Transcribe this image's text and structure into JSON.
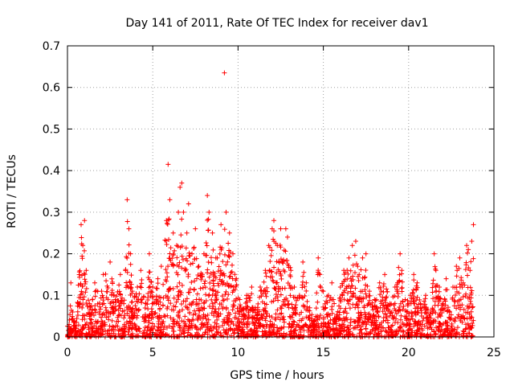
{
  "chart_data": {
    "type": "scatter",
    "title": "Day 141 of 2011, Rate Of TEC Index for receiver dav1",
    "xlabel": "GPS time / hours",
    "ylabel": "ROTI / TECUs",
    "xlim": [
      0,
      25
    ],
    "ylim": [
      0,
      0.7
    ],
    "x_ticks": [
      0,
      5,
      10,
      15,
      20,
      25
    ],
    "x_tick_labels": [
      "0",
      "5",
      "10",
      "15",
      "20",
      "25"
    ],
    "y_ticks": [
      0,
      0.1,
      0.2,
      0.3,
      0.4,
      0.5,
      0.6,
      0.7
    ],
    "y_tick_labels": [
      "0",
      "0.1",
      "0.2",
      "0.3",
      "0.4",
      "0.5",
      "0.6",
      "0.7"
    ],
    "grid": true,
    "marker": "+",
    "color": "#ff0000",
    "series": [
      {
        "name": "ROTI",
        "points": [
          [
            0.1,
            0.03
          ],
          [
            0.2,
            0.13
          ],
          [
            0.3,
            0.06
          ],
          [
            0.5,
            0.02
          ],
          [
            0.8,
            0.27
          ],
          [
            0.9,
            0.22
          ],
          [
            1.0,
            0.28
          ],
          [
            1.1,
            0.16
          ],
          [
            1.3,
            0.08
          ],
          [
            1.6,
            0.13
          ],
          [
            2.0,
            0.11
          ],
          [
            2.1,
            0.15
          ],
          [
            2.5,
            0.18
          ],
          [
            2.8,
            0.09
          ],
          [
            3.1,
            0.15
          ],
          [
            3.3,
            0.08
          ],
          [
            3.5,
            0.33
          ],
          [
            3.6,
            0.26
          ],
          [
            3.7,
            0.2
          ],
          [
            3.8,
            0.11
          ],
          [
            4.1,
            0.12
          ],
          [
            4.3,
            0.16
          ],
          [
            4.6,
            0.08
          ],
          [
            4.8,
            0.2
          ],
          [
            5.0,
            0.12
          ],
          [
            5.3,
            0.14
          ],
          [
            5.5,
            0.17
          ],
          [
            5.8,
            0.28
          ],
          [
            5.9,
            0.415
          ],
          [
            6.0,
            0.33
          ],
          [
            6.2,
            0.25
          ],
          [
            6.4,
            0.22
          ],
          [
            6.5,
            0.3
          ],
          [
            6.6,
            0.36
          ],
          [
            6.7,
            0.37
          ],
          [
            6.8,
            0.3
          ],
          [
            7.0,
            0.25
          ],
          [
            7.1,
            0.32
          ],
          [
            7.3,
            0.2
          ],
          [
            7.5,
            0.26
          ],
          [
            7.7,
            0.17
          ],
          [
            8.0,
            0.2
          ],
          [
            8.2,
            0.34
          ],
          [
            8.3,
            0.3
          ],
          [
            8.5,
            0.25
          ],
          [
            8.7,
            0.19
          ],
          [
            9.0,
            0.27
          ],
          [
            9.2,
            0.635
          ],
          [
            9.3,
            0.3
          ],
          [
            9.5,
            0.25
          ],
          [
            9.7,
            0.2
          ],
          [
            9.9,
            0.14
          ],
          [
            10.1,
            0.09
          ],
          [
            10.5,
            0.1
          ],
          [
            10.8,
            0.12
          ],
          [
            11.0,
            0.07
          ],
          [
            11.3,
            0.12
          ],
          [
            11.6,
            0.16
          ],
          [
            11.8,
            0.22
          ],
          [
            12.0,
            0.26
          ],
          [
            12.1,
            0.28
          ],
          [
            12.3,
            0.22
          ],
          [
            12.5,
            0.26
          ],
          [
            12.6,
            0.18
          ],
          [
            12.8,
            0.26
          ],
          [
            12.9,
            0.24
          ],
          [
            13.1,
            0.16
          ],
          [
            13.3,
            0.12
          ],
          [
            13.6,
            0.1
          ],
          [
            13.8,
            0.18
          ],
          [
            14.0,
            0.13
          ],
          [
            14.2,
            0.07
          ],
          [
            14.5,
            0.04
          ],
          [
            14.7,
            0.19
          ],
          [
            14.8,
            0.15
          ],
          [
            15.0,
            0.11
          ],
          [
            15.3,
            0.1
          ],
          [
            15.5,
            0.13
          ],
          [
            15.8,
            0.05
          ],
          [
            16.0,
            0.12
          ],
          [
            16.2,
            0.16
          ],
          [
            16.5,
            0.19
          ],
          [
            16.7,
            0.22
          ],
          [
            16.9,
            0.23
          ],
          [
            17.1,
            0.15
          ],
          [
            17.3,
            0.19
          ],
          [
            17.5,
            0.2
          ],
          [
            17.7,
            0.11
          ],
          [
            18.0,
            0.09
          ],
          [
            18.3,
            0.13
          ],
          [
            18.6,
            0.15
          ],
          [
            18.9,
            0.08
          ],
          [
            19.2,
            0.12
          ],
          [
            19.5,
            0.2
          ],
          [
            19.6,
            0.16
          ],
          [
            19.8,
            0.09
          ],
          [
            20.1,
            0.1
          ],
          [
            20.3,
            0.15
          ],
          [
            20.5,
            0.13
          ],
          [
            20.7,
            0.08
          ],
          [
            21.0,
            0.1
          ],
          [
            21.3,
            0.06
          ],
          [
            21.5,
            0.2
          ],
          [
            21.6,
            0.16
          ],
          [
            21.8,
            0.12
          ],
          [
            22.0,
            0.08
          ],
          [
            22.2,
            0.14
          ],
          [
            22.4,
            0.06
          ],
          [
            22.6,
            0.12
          ],
          [
            22.8,
            0.17
          ],
          [
            23.0,
            0.19
          ],
          [
            23.2,
            0.13
          ],
          [
            23.4,
            0.22
          ],
          [
            23.5,
            0.21
          ],
          [
            23.6,
            0.16
          ],
          [
            23.7,
            0.23
          ],
          [
            23.8,
            0.27
          ]
        ]
      }
    ]
  }
}
